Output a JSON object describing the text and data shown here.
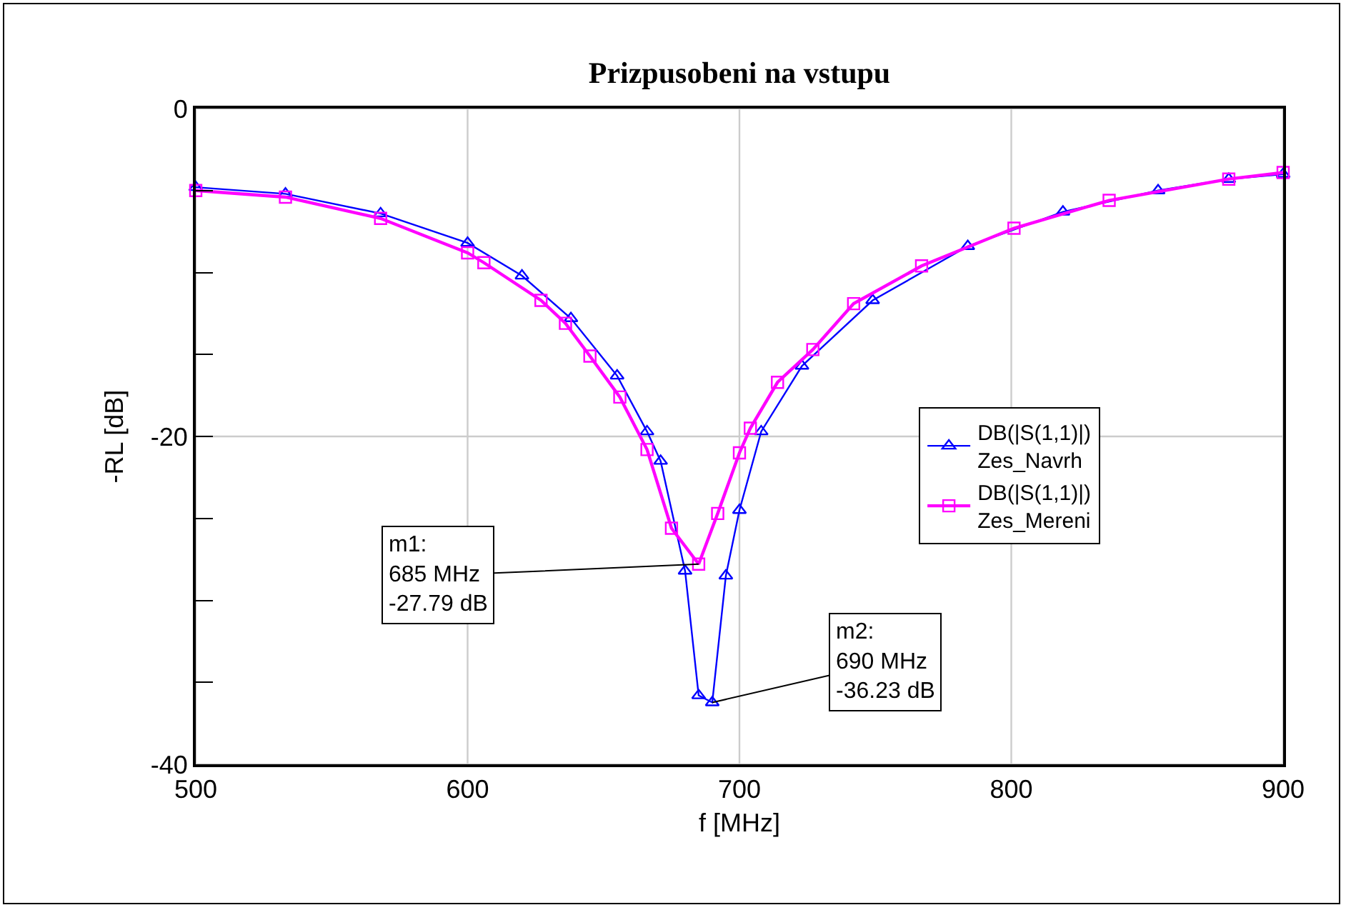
{
  "chart_data": {
    "type": "line",
    "title": "Prizpusobeni na vstupu",
    "xlabel": "f [MHz]",
    "ylabel": "-RL [dB]",
    "xlim": [
      500,
      900
    ],
    "xticks": [
      500,
      600,
      700,
      800,
      900
    ],
    "ylim": [
      -40,
      0
    ],
    "yticks": [
      0,
      {
        "value": -5,
        "label": null
      },
      {
        "value": -10,
        "label": null
      },
      {
        "value": -15,
        "label": null
      },
      -20,
      {
        "value": -25,
        "label": null
      },
      {
        "value": -30,
        "label": null
      },
      {
        "value": -35,
        "label": null
      },
      -40
    ],
    "grid": true,
    "legend": "right",
    "line_style": "solid",
    "series": [
      {
        "name": "DB(|S(1,1)|)\nZes_Navrh",
        "color": "#0000ff",
        "marker": "triangle",
        "x": [
          500,
          533,
          568,
          600,
          620,
          638,
          655,
          666,
          671,
          680,
          685,
          690,
          695,
          700,
          708,
          723,
          749,
          784,
          819,
          854,
          880,
          900
        ],
        "values": [
          -4.8,
          -5.2,
          -6.4,
          -8.2,
          -10.2,
          -12.8,
          -16.3,
          -19.7,
          -21.5,
          -28.2,
          -35.8,
          -36.23,
          -28.5,
          -24.5,
          -19.7,
          -15.7,
          -11.7,
          -8.4,
          -6.3,
          -5.0,
          -4.3,
          -4.0
        ]
      },
      {
        "name": "DB(|S(1,1)|)\nZes_Mereni",
        "color": "#ff00ff",
        "marker": "square",
        "x": [
          500,
          533,
          568,
          600,
          606,
          627,
          636,
          645,
          656,
          666,
          675,
          685,
          692,
          700,
          704,
          714,
          727,
          742,
          767,
          801,
          836,
          880,
          900
        ],
        "values": [
          -5.0,
          -5.4,
          -6.7,
          -8.8,
          -9.4,
          -11.7,
          -13.1,
          -15.1,
          -17.6,
          -20.8,
          -25.6,
          -27.79,
          -24.7,
          -21.0,
          -19.5,
          -16.7,
          -14.7,
          -11.9,
          -9.6,
          -7.3,
          -5.6,
          -4.3,
          -3.9
        ]
      }
    ],
    "annotations": [
      {
        "text": "m1:\n685 MHz\n-27.79 dB",
        "x": 685,
        "y": -27.79
      },
      {
        "text": "m2:\n690 MHz\n-36.23 dB",
        "x": 690,
        "y": -36.23
      }
    ]
  }
}
